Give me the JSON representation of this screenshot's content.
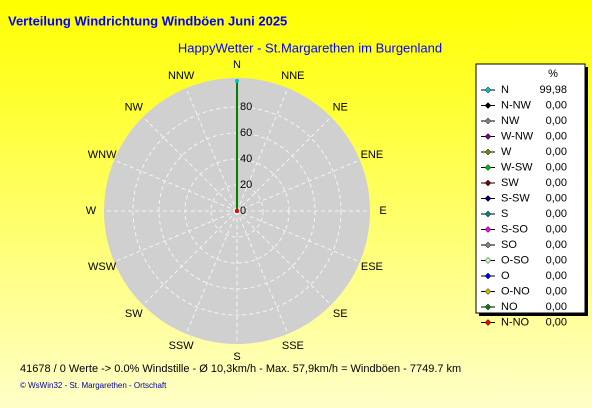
{
  "chart_data": {
    "type": "polar",
    "title": "Verteilung Windrichtung Windböen  Juni 2025",
    "subtitle": "HappyWetter - St.Margarethen im Burgenland",
    "direction_labels": [
      "N",
      "NNE",
      "NE",
      "ENE",
      "E",
      "ESE",
      "SE",
      "SSE",
      "S",
      "SSW",
      "SW",
      "WSW",
      "W",
      "WNW",
      "NW",
      "NNW"
    ],
    "rlim": [
      0,
      100
    ],
    "rticks": [
      0,
      20,
      40,
      60,
      80
    ],
    "line_color": "#008000",
    "legend_header": "%",
    "categories": [
      "N",
      "N-NW",
      "NW",
      "W-NW",
      "W",
      "W-SW",
      "SW",
      "S-SW",
      "S",
      "S-SO",
      "SO",
      "O-SO",
      "O",
      "O-NO",
      "NO",
      "N-NO"
    ],
    "values": [
      99.98,
      0,
      0,
      0,
      0,
      0,
      0,
      0,
      0,
      0,
      0,
      0,
      0,
      0,
      0,
      0
    ],
    "value_labels": [
      "99,98",
      "0,00",
      "0,00",
      "0,00",
      "0,00",
      "0,00",
      "0,00",
      "0,00",
      "0,00",
      "0,00",
      "0,00",
      "0,00",
      "0,00",
      "0,00",
      "0,00",
      "0,00"
    ],
    "colors": [
      "#00c0c0",
      "#000000",
      "#808080",
      "#800080",
      "#808000",
      "#00c000",
      "#800000",
      "#000080",
      "#008080",
      "#ff00ff",
      "#808080",
      "#c0ffc0",
      "#0000ff",
      "#c0c000",
      "#008000",
      "#ff0000"
    ],
    "footer": [
      "41678 / 0 Werte  -> 0.0% Windstille   -   Ø 10,3km/h  -  Max. 57,9km/h = Windböen   -   7749.7 km",
      "© WsWin32  -  St. Margarethen - Ortschaft"
    ]
  }
}
